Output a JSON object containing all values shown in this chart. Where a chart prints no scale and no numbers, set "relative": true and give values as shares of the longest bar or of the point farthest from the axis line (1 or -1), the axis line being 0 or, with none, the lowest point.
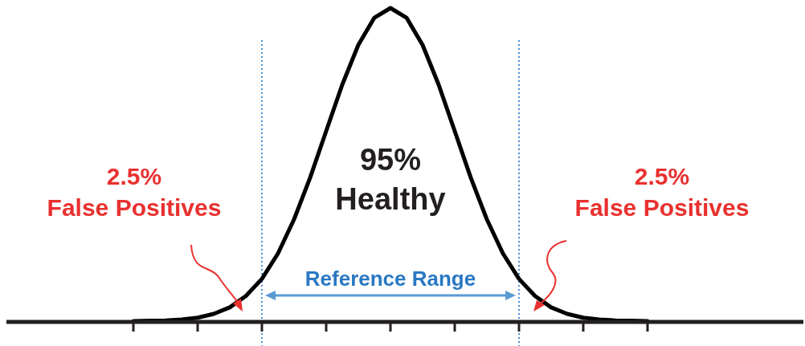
{
  "chart_data": {
    "type": "line",
    "relative": true,
    "categories": [
      null,
      null,
      null,
      null,
      null,
      null,
      null,
      null,
      null,
      null,
      null,
      null,
      null,
      null,
      null,
      null,
      null,
      null,
      null,
      null,
      null,
      null,
      null,
      null,
      null,
      null,
      null,
      null,
      null,
      null,
      null,
      null,
      null
    ],
    "series": [
      {
        "color": "#000000",
        "values": [
          0,
          0.001,
          0.002,
          0.005,
          0.011,
          0.023,
          0.044,
          0.08,
          0.135,
          0.216,
          0.325,
          0.458,
          0.607,
          0.755,
          0.882,
          0.969,
          1,
          0.969,
          0.882,
          0.755,
          0.607,
          0.458,
          0.325,
          0.216,
          0.135,
          0.08,
          0.044,
          0.023,
          0.011,
          0.005,
          0.002,
          0.001,
          0
        ]
      }
    ],
    "annotations": [
      "2.5%\nFalse Positives",
      "95%\nHealthy",
      "2.5%\nFalse Positives",
      "Reference Range"
    ]
  }
}
